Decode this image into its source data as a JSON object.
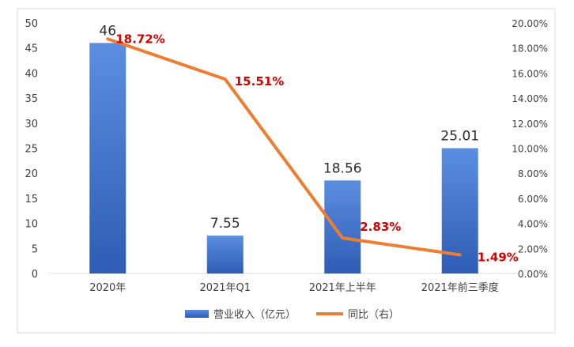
{
  "chart_data": {
    "type": "bar",
    "categories": [
      "2020年",
      "2021年Q1",
      "2021年上半年",
      "2021年前三季度"
    ],
    "series": [
      {
        "name": "营业收入（亿元）",
        "type": "bar",
        "axis": "left",
        "values": [
          46,
          7.55,
          18.56,
          25.01
        ],
        "labels": [
          "46",
          "7.55",
          "18.56",
          "25.01"
        ]
      },
      {
        "name": "同比（右）",
        "type": "line",
        "axis": "right",
        "values": [
          18.72,
          15.51,
          2.83,
          1.49
        ],
        "labels": [
          "18.72%",
          "15.51%",
          "2.83%",
          "1.49%"
        ]
      }
    ],
    "y_left": {
      "ylim": [
        0,
        50
      ],
      "ticks": [
        "0",
        "5",
        "10",
        "15",
        "20",
        "25",
        "30",
        "35",
        "40",
        "45",
        "50"
      ]
    },
    "y_right": {
      "ylim": [
        0,
        20
      ],
      "ticks": [
        "0.00%",
        "2.00%",
        "4.00%",
        "6.00%",
        "8.00%",
        "10.00%",
        "12.00%",
        "14.00%",
        "16.00%",
        "18.00%",
        "20.00%"
      ]
    },
    "grid": false,
    "legend_position": "bottom",
    "colors": {
      "bar_top": "#5b8ee0",
      "bar_bottom": "#2f5cb4",
      "line": "#ed7d31",
      "line_label": "#d40000",
      "bar_label": "#2b2b2b",
      "axis_text": "#404040",
      "frame": "#d9d9d9"
    }
  }
}
